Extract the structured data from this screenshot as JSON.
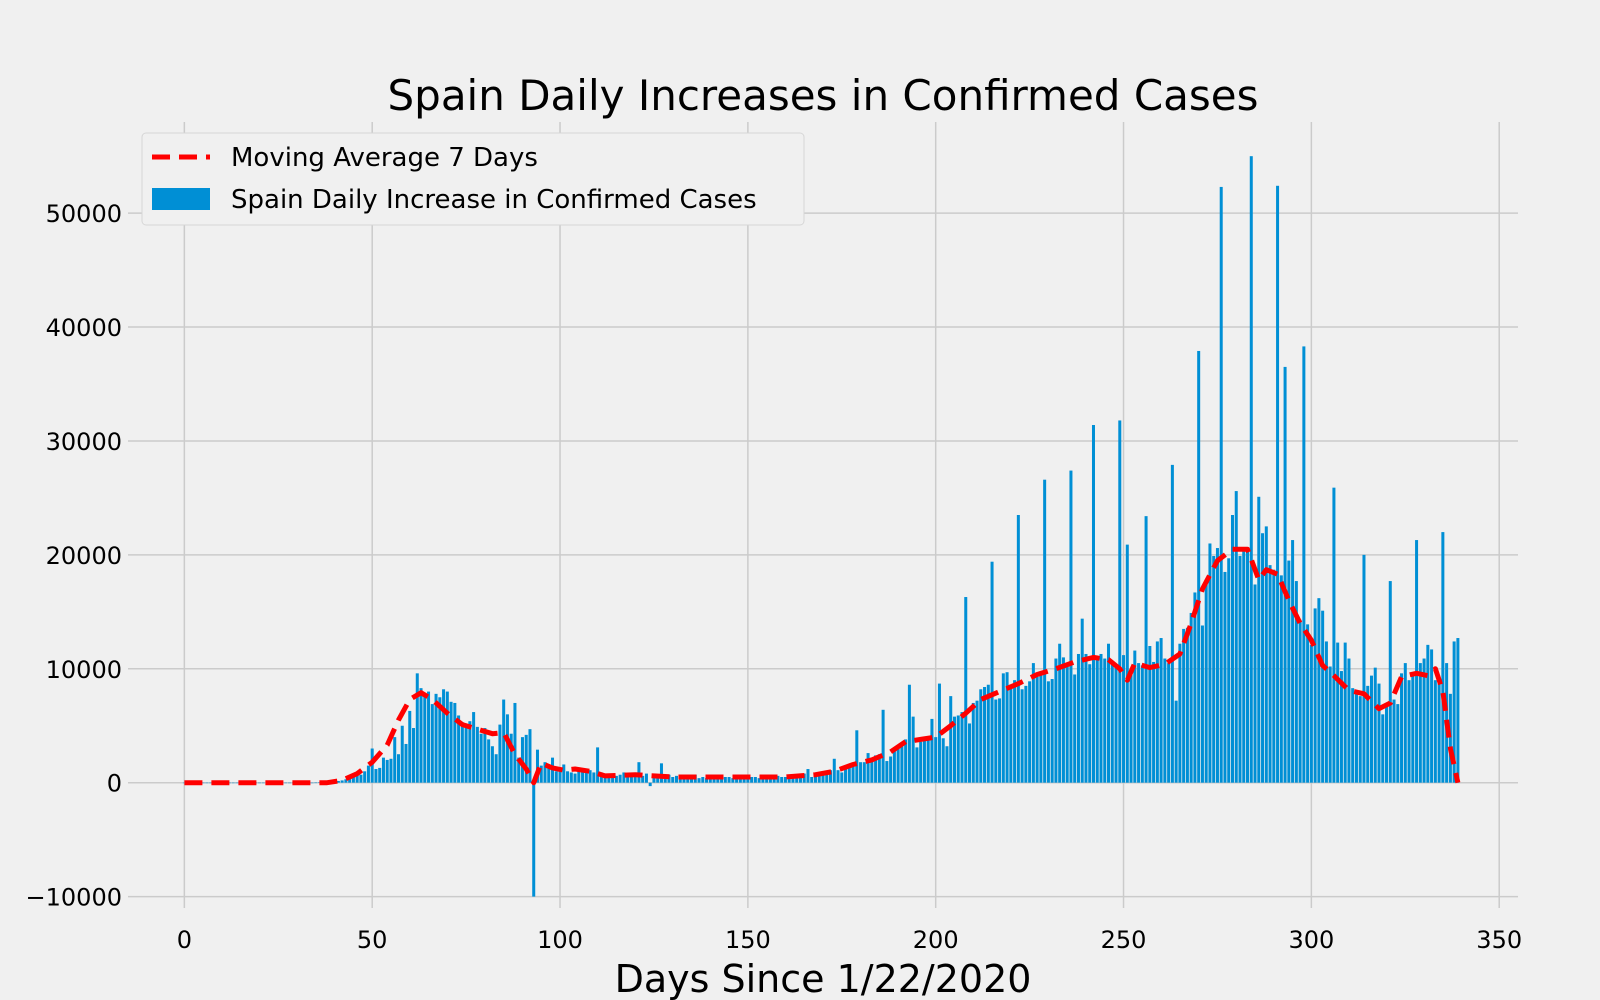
{
  "chart_data": {
    "type": "bar",
    "title": "Spain Daily Increases in Confirmed Cases",
    "xlabel": "Days Since 1/22/2020",
    "ylabel": "",
    "xlim": [
      -15,
      355
    ],
    "ylim": [
      -11000,
      58000
    ],
    "xticks": [
      0,
      50,
      100,
      150,
      200,
      250,
      300,
      350
    ],
    "yticks": [
      -10000,
      0,
      10000,
      20000,
      30000,
      40000,
      50000
    ],
    "grid": true,
    "legend_position": "top-left",
    "colors": {
      "bars": "#008fd5",
      "moving_average": "#ff0000",
      "background": "#f0f0f0",
      "grid": "#cbcbcb"
    },
    "series": [
      {
        "name": "Moving Average 7 Days",
        "kind": "line",
        "style": "dashed",
        "points": [
          [
            0,
            0
          ],
          [
            38,
            0
          ],
          [
            42,
            200
          ],
          [
            46,
            800
          ],
          [
            50,
            1800
          ],
          [
            54,
            3300
          ],
          [
            57,
            5500
          ],
          [
            60,
            7300
          ],
          [
            63,
            7900
          ],
          [
            66,
            7300
          ],
          [
            70,
            6100
          ],
          [
            74,
            5100
          ],
          [
            78,
            4700
          ],
          [
            82,
            4300
          ],
          [
            85,
            4400
          ],
          [
            88,
            2500
          ],
          [
            91,
            1200
          ],
          [
            93,
            0
          ],
          [
            95,
            1700
          ],
          [
            98,
            1300
          ],
          [
            101,
            1100
          ],
          [
            104,
            1200
          ],
          [
            108,
            1000
          ],
          [
            112,
            600
          ],
          [
            120,
            700
          ],
          [
            130,
            500
          ],
          [
            150,
            500
          ],
          [
            160,
            500
          ],
          [
            168,
            700
          ],
          [
            173,
            1000
          ],
          [
            178,
            1600
          ],
          [
            183,
            2000
          ],
          [
            188,
            2700
          ],
          [
            192,
            3600
          ],
          [
            196,
            3800
          ],
          [
            200,
            4000
          ],
          [
            204,
            5000
          ],
          [
            208,
            6100
          ],
          [
            212,
            7300
          ],
          [
            217,
            8000
          ],
          [
            222,
            8700
          ],
          [
            227,
            9500
          ],
          [
            232,
            10000
          ],
          [
            237,
            10600
          ],
          [
            242,
            11000
          ],
          [
            246,
            10800
          ],
          [
            249,
            10000
          ],
          [
            251,
            9000
          ],
          [
            253,
            10500
          ],
          [
            257,
            10100
          ],
          [
            261,
            10400
          ],
          [
            265,
            11300
          ],
          [
            268,
            14000
          ],
          [
            271,
            17000
          ],
          [
            275,
            19500
          ],
          [
            279,
            20500
          ],
          [
            283,
            20500
          ],
          [
            286,
            17800
          ],
          [
            288,
            18700
          ],
          [
            291,
            18300
          ],
          [
            294,
            16000
          ],
          [
            297,
            14000
          ],
          [
            300,
            12500
          ],
          [
            303,
            10300
          ],
          [
            306,
            9400
          ],
          [
            310,
            8100
          ],
          [
            314,
            7800
          ],
          [
            318,
            6500
          ],
          [
            321,
            7000
          ],
          [
            324,
            9300
          ],
          [
            328,
            9600
          ],
          [
            331,
            9400
          ],
          [
            333,
            10000
          ],
          [
            335,
            8000
          ],
          [
            337,
            3000
          ],
          [
            339,
            0
          ]
        ]
      },
      {
        "name": "Spain Daily Increase in Confirmed Cases",
        "kind": "bar",
        "x_start": 0,
        "values": [
          0,
          0,
          0,
          0,
          0,
          0,
          0,
          0,
          0,
          1,
          0,
          0,
          0,
          0,
          0,
          0,
          0,
          0,
          1,
          0,
          0,
          0,
          0,
          0,
          0,
          0,
          0,
          0,
          0,
          0,
          0,
          0,
          0,
          0,
          0,
          10,
          20,
          30,
          40,
          50,
          80,
          150,
          200,
          300,
          400,
          600,
          700,
          700,
          1000,
          1500,
          3000,
          1200,
          1300,
          2200,
          2000,
          2100,
          4000,
          2500,
          5000,
          3400,
          6300,
          4800,
          9600,
          8300,
          7800,
          8000,
          6900,
          7800,
          7500,
          8200,
          8000,
          7100,
          7000,
          5900,
          5300,
          5000,
          5400,
          6200,
          4900,
          4300,
          4800,
          3800,
          3200,
          2500,
          5100,
          7300,
          6000,
          4300,
          7000,
          2200,
          4000,
          4200,
          4700,
          -10000,
          2900,
          1500,
          1800,
          1300,
          2200,
          1000,
          1100,
          1600,
          1000,
          900,
          800,
          1300,
          1000,
          1000,
          1100,
          900,
          3100,
          900,
          700,
          500,
          800,
          600,
          700,
          900,
          500,
          600,
          600,
          1800,
          600,
          800,
          -300,
          600,
          600,
          1700,
          600,
          700,
          500,
          600,
          500,
          500,
          400,
          400,
          700,
          400,
          500,
          400,
          500,
          400,
          400,
          600,
          500,
          500,
          400,
          400,
          500,
          600,
          400,
          500,
          500,
          400,
          400,
          500,
          600,
          500,
          600,
          500,
          500,
          400,
          600,
          600,
          700,
          800,
          1200,
          500,
          700,
          800,
          900,
          700,
          1100,
          2100,
          1100,
          900,
          1500,
          1600,
          1700,
          4600,
          1800,
          1800,
          2600,
          2200,
          2400,
          2500,
          6400,
          1900,
          2300,
          2800,
          3000,
          3400,
          3800,
          8600,
          5800,
          3100,
          3600,
          4000,
          3900,
          5600,
          4000,
          8700,
          3900,
          3200,
          7600,
          5800,
          5900,
          6200,
          16300,
          5200,
          7000,
          7200,
          8200,
          8400,
          8600,
          19400,
          7300,
          7400,
          9600,
          9700,
          8600,
          9000,
          23500,
          8200,
          8500,
          8900,
          10500,
          9300,
          9700,
          26600,
          8900,
          9100,
          10900,
          12200,
          11000,
          10500,
          27400,
          9500,
          11300,
          14400,
          11300,
          10400,
          31400,
          11000,
          11300,
          10900,
          12200,
          10400,
          10100,
          31800,
          11200,
          20900,
          9500,
          11600,
          10500,
          10300,
          23400,
          12000,
          10600,
          12400,
          12700,
          10900,
          10500,
          27900,
          7200,
          12200,
          13500,
          13600,
          14900,
          16700,
          37900,
          13800,
          17800,
          21000,
          19900,
          20600,
          52300,
          18500,
          19700,
          23500,
          25600,
          19900,
          20400,
          20300,
          55000,
          17400,
          25100,
          21900,
          22500,
          19100,
          18700,
          52400,
          18200,
          36500,
          19500,
          21300,
          17700,
          14300,
          38300,
          13900,
          12100,
          15300,
          16200,
          15100,
          12400,
          10200,
          25900,
          12300,
          9800,
          12300,
          10900,
          8300,
          7900,
          7600,
          20000,
          8500,
          9400,
          10100,
          8700,
          6000,
          7000,
          17700,
          7300,
          6900,
          9600,
          10500,
          9000,
          9600,
          21300,
          10500,
          10900,
          12100,
          11700,
          9000,
          8900,
          22000,
          10500,
          7800,
          12400,
          12700
        ]
      }
    ]
  }
}
